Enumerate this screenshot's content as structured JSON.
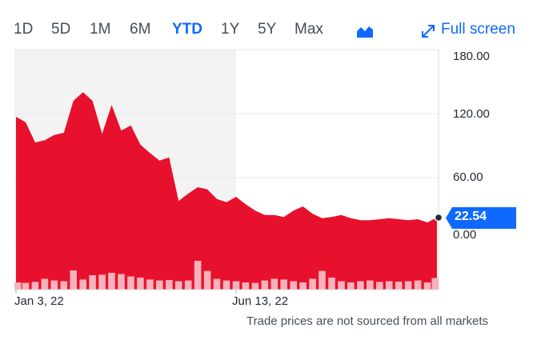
{
  "range_tabs": [
    {
      "label": "1D",
      "active": false
    },
    {
      "label": "5D",
      "active": false
    },
    {
      "label": "1M",
      "active": false
    },
    {
      "label": "6M",
      "active": false
    },
    {
      "label": "YTD",
      "active": true
    },
    {
      "label": "1Y",
      "active": false
    },
    {
      "label": "5Y",
      "active": false
    },
    {
      "label": "Max",
      "active": false
    }
  ],
  "chart_type_icon": "mountain-chart-icon",
  "fullscreen": {
    "label": "Full screen",
    "icon": "expand-arrows-icon"
  },
  "footnote": "Trade prices are not sourced from all markets",
  "colors": {
    "accent": "#0f69ff",
    "area_fill": "#e8112d",
    "volume_bar": "#f7b2bb",
    "highlight_band": "#f3f3f3",
    "grid": "#e6e9ec"
  },
  "chart_data": {
    "type": "area",
    "title": "",
    "xlabel": "",
    "ylabel": "",
    "ylim": [
      -45,
      180
    ],
    "y_ticks": [
      "180.00",
      "120.00",
      "60.00",
      "0.00"
    ],
    "y_tick_values": [
      180,
      120,
      60,
      0
    ],
    "x_tick_labels": [
      "Jan 3, 22",
      "Jun 13, 22"
    ],
    "x_tick_index": [
      0,
      23
    ],
    "highlight_range_index": [
      0,
      23
    ],
    "current_price": "22.54",
    "current_value": 22.54,
    "series": [
      {
        "values": [
          117,
          112,
          93,
          95,
          100,
          102,
          132,
          140,
          132,
          101,
          128,
          104,
          109,
          91,
          83,
          76,
          79,
          38,
          45,
          51,
          49,
          40,
          37,
          42,
          35,
          29,
          25,
          25,
          23,
          29,
          33,
          26,
          22,
          23,
          25,
          22,
          20,
          20,
          21,
          22,
          21,
          20,
          21,
          18,
          22.54
        ]
      }
    ],
    "volume": [
      0.3,
      0.28,
      0.32,
      0.45,
      0.38,
      0.35,
      0.8,
      0.42,
      0.6,
      0.62,
      0.7,
      0.65,
      0.55,
      0.5,
      0.42,
      0.38,
      0.4,
      0.35,
      0.38,
      1.2,
      0.78,
      0.45,
      0.38,
      0.35,
      0.3,
      0.28,
      0.38,
      0.45,
      0.42,
      0.35,
      0.3,
      0.45,
      0.78,
      0.5,
      0.35,
      0.3,
      0.35,
      0.38,
      0.32,
      0.35,
      0.33,
      0.35,
      0.38,
      0.3,
      0.48
    ]
  }
}
